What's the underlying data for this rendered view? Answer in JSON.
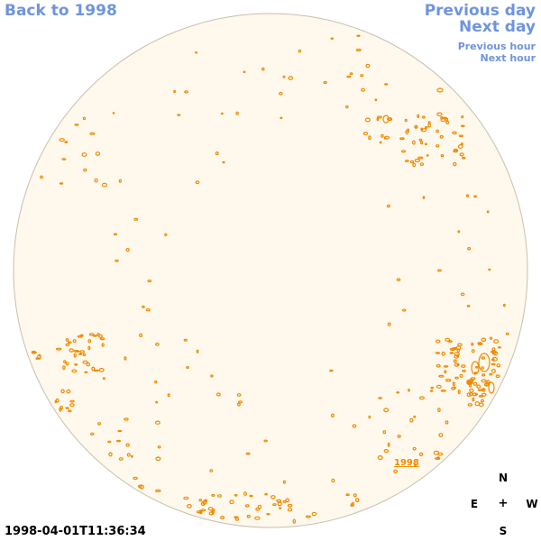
{
  "nav": {
    "back_label": "Back to 1998",
    "previous_day": "Previous day",
    "next_day": "Next day",
    "previous_hour": "Previous hour",
    "next_hour": "Next hour"
  },
  "timestamp": "1998-04-01T11:36:34",
  "annotation": "1998",
  "compass": {
    "north": "N",
    "south": "S",
    "east": "E",
    "west": "W",
    "center": "+"
  },
  "colors": {
    "disk_fill": "#fff8ec",
    "disk_edge": "#c9bfae",
    "contour": "#ee8a00",
    "link": "#6f94dd"
  }
}
